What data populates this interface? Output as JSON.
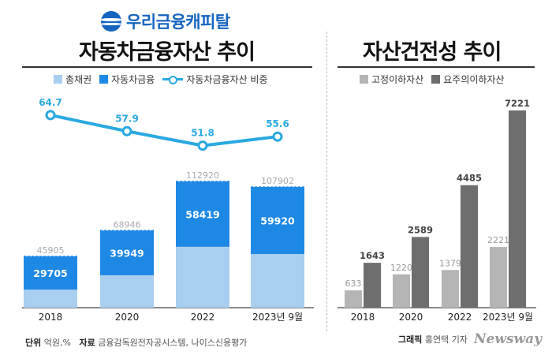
{
  "logo": {
    "text": "우리금융캐피탈"
  },
  "left": {
    "title": "자동차금융자산 추이",
    "legend": {
      "total": "총채권",
      "auto": "자동차금융",
      "ratio": "자동차금융자산 비중"
    }
  },
  "right": {
    "title": "자산건전성 추이",
    "legend": {
      "fixed": "고정이하자산",
      "watch": "요주의이하자산"
    }
  },
  "footer": {
    "unit_label": "단위",
    "unit_value": "억원,%",
    "source_label": "자료",
    "source_value": "금융감독원전자공시스템, 나이스신용평가",
    "graphic_label": "그래픽",
    "graphic_value": "홍연택 기자",
    "brand": "Newsway"
  },
  "colors": {
    "total": "#a8cef0",
    "total_top": "#1e88e5",
    "auto": "#1e88e5",
    "ratio": "#29a9e1",
    "fixed": "#b5b5b5",
    "watch": "#6e6e6e",
    "total_label": "#aaaaaa"
  },
  "chart_data": [
    {
      "type": "bar",
      "title": "자동차금융자산 추이",
      "categories": [
        "2018",
        "2020",
        "2022",
        "2023년 9월"
      ],
      "series": [
        {
          "name": "총채권",
          "values": [
            45905,
            68946,
            112920,
            107902
          ]
        },
        {
          "name": "자동차금융",
          "values": [
            29705,
            39949,
            58419,
            59920
          ]
        },
        {
          "name": "자동차금융자산 비중",
          "type": "line",
          "values": [
            64.7,
            57.9,
            51.8,
            55.6
          ]
        }
      ],
      "unit": "억원,%",
      "legend": "top"
    },
    {
      "type": "bar",
      "title": "자산건전성 추이",
      "categories": [
        "2018",
        "2020",
        "2022",
        "2023년 9월"
      ],
      "series": [
        {
          "name": "고정이하자산",
          "values": [
            633,
            1220,
            1379,
            2221
          ]
        },
        {
          "name": "요주의이하자산",
          "values": [
            1643,
            2589,
            4485,
            7221
          ]
        }
      ],
      "unit": "억원",
      "legend": "top"
    }
  ]
}
